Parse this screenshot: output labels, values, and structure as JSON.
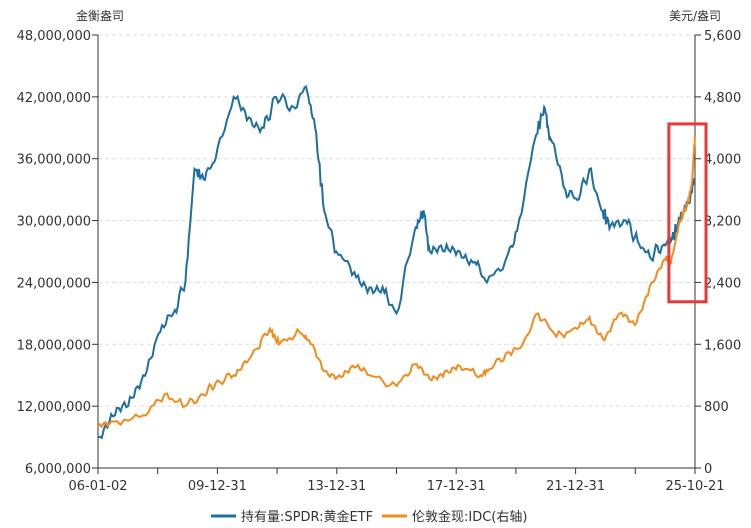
{
  "chart_data": {
    "type": "line",
    "left_axis_label": "金衡盎司",
    "right_axis_label": "美元/盎司",
    "left_ylim": [
      6000000,
      48000000
    ],
    "right_ylim": [
      0,
      5600
    ],
    "left_ticks": [
      "6,000,000",
      "12,000,000",
      "18,000,000",
      "24,000,000",
      "30,000,000",
      "36,000,000",
      "42,000,000",
      "48,000,000"
    ],
    "right_ticks": [
      "0",
      "800",
      "1,600",
      "2,400",
      "3,200",
      "4,000",
      "4,800",
      "5,600"
    ],
    "x_tick_labels": [
      "06-01-02",
      "09-12-31",
      "13-12-31",
      "17-12-31",
      "21-12-31",
      "25-10-21"
    ],
    "grid": true,
    "legend_position": "bottom",
    "highlight_box": {
      "color": "#e8393a",
      "x_range": [
        2025.0,
        2025.9
      ],
      "right_axis_range": [
        2150,
        4450
      ]
    },
    "series": [
      {
        "name": "持有量:SPDR:黄金ETF",
        "axis": "left",
        "color": "#1f6f9e",
        "x": [
          2006.0,
          2006.5,
          2007.0,
          2007.5,
          2008.0,
          2008.5,
          2008.9,
          2009.2,
          2009.5,
          2009.9,
          2010.5,
          2011.0,
          2011.5,
          2011.9,
          2012.5,
          2012.9,
          2013.2,
          2013.5,
          2013.9,
          2014.5,
          2015.0,
          2015.5,
          2015.9,
          2016.5,
          2016.8,
          2017.0,
          2017.5,
          2018.0,
          2018.5,
          2018.9,
          2019.5,
          2019.9,
          2020.5,
          2020.8,
          2021.0,
          2021.5,
          2021.9,
          2022.3,
          2022.7,
          2023.0,
          2023.5,
          2023.9,
          2024.3,
          2024.7,
          2025.0,
          2025.3,
          2025.6,
          2025.8
        ],
        "values": [
          9000000,
          11000000,
          12000000,
          15000000,
          19000000,
          21000000,
          24000000,
          35000000,
          34000000,
          36000000,
          42000000,
          40000000,
          39000000,
          42000000,
          41000000,
          43000000,
          39000000,
          31000000,
          27000000,
          25000000,
          23500000,
          23000000,
          21000000,
          29000000,
          31000000,
          27000000,
          27000000,
          27000000,
          26000000,
          24000000,
          26000000,
          29000000,
          38000000,
          41000000,
          38000000,
          33000000,
          32000000,
          35000000,
          31000000,
          29500000,
          30000000,
          28000000,
          26500000,
          27500000,
          28000000,
          30000000,
          32000000,
          34000000
        ]
      },
      {
        "name": "伦敦金现:IDC(右轴)",
        "axis": "right",
        "color": "#f28c1e",
        "x": [
          2006.0,
          2006.5,
          2007.5,
          2008.2,
          2008.9,
          2009.5,
          2009.9,
          2010.5,
          2011.0,
          2011.7,
          2012.0,
          2012.7,
          2013.0,
          2013.5,
          2014.0,
          2014.5,
          2015.0,
          2015.9,
          2016.5,
          2017.0,
          2017.5,
          2018.0,
          2018.7,
          2019.0,
          2019.6,
          2020.0,
          2020.6,
          2021.2,
          2021.9,
          2022.3,
          2022.8,
          2023.3,
          2023.8,
          2024.3,
          2024.8,
          2025.0,
          2025.3,
          2025.5,
          2025.7,
          2025.8
        ],
        "values": [
          530,
          600,
          680,
          950,
          800,
          950,
          1100,
          1200,
          1400,
          1800,
          1600,
          1750,
          1650,
          1250,
          1200,
          1300,
          1200,
          1060,
          1340,
          1150,
          1250,
          1320,
          1200,
          1280,
          1500,
          1550,
          2000,
          1700,
          1800,
          1950,
          1650,
          2000,
          1850,
          2350,
          2700,
          2650,
          3200,
          3350,
          3700,
          4300
        ]
      }
    ]
  }
}
